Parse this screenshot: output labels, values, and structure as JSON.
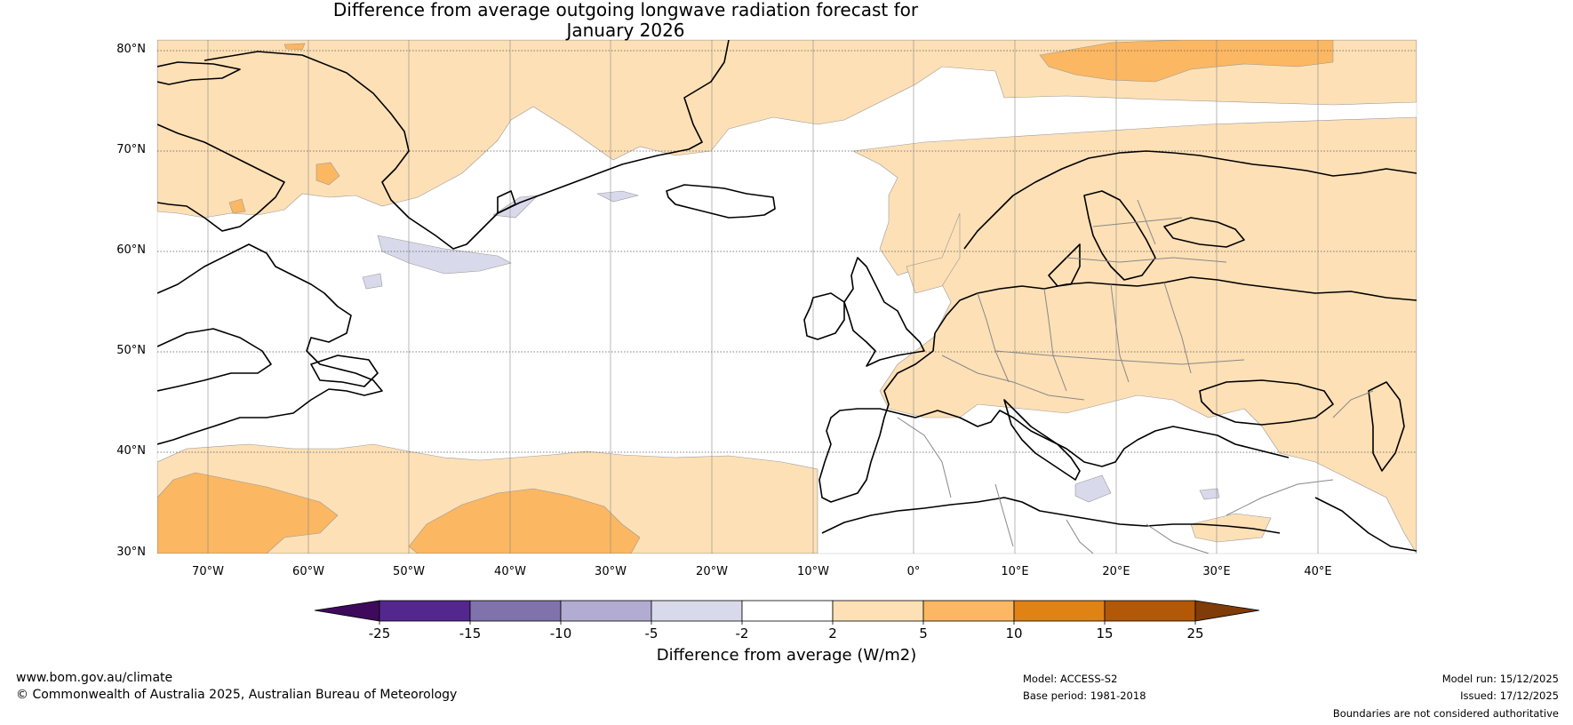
{
  "title": {
    "line1": "Difference from average outgoing longwave radiation forecast for",
    "line2": "January 2026"
  },
  "map": {
    "lat_labels": [
      "80°N",
      "70°N",
      "60°N",
      "50°N",
      "40°N",
      "30°N"
    ],
    "lon_labels": [
      "70°W",
      "60°W",
      "50°W",
      "40°W",
      "30°W",
      "20°W",
      "10°W",
      "0°",
      "10°E",
      "20°E",
      "30°E",
      "40°E"
    ],
    "region": "North Atlantic and Europe"
  },
  "colorbar": {
    "title": "Difference from average (W/m2)",
    "ticks": [
      "-25",
      "-15",
      "-10",
      "-5",
      "-2",
      "2",
      "5",
      "10",
      "15",
      "25"
    ],
    "colors": [
      "#3f0a5c",
      "#54278f",
      "#8073ac",
      "#b2abd2",
      "#d8daeb",
      "#ffffff",
      "#fde0b6",
      "#fbb762",
      "#e08214",
      "#b35806",
      "#7f3b08"
    ]
  },
  "footer": {
    "website": "www.bom.gov.au/climate",
    "copyright": "© Commonwealth of Australia 2025, Australian Bureau of Meteorology",
    "model": "Model: ACCESS-S2",
    "base_period": "Base period: 1981-2018",
    "model_run": "Model run: 15/12/2025",
    "issued": "Issued: 17/12/2025",
    "disclaimer": "Boundaries are not considered authoritative"
  }
}
